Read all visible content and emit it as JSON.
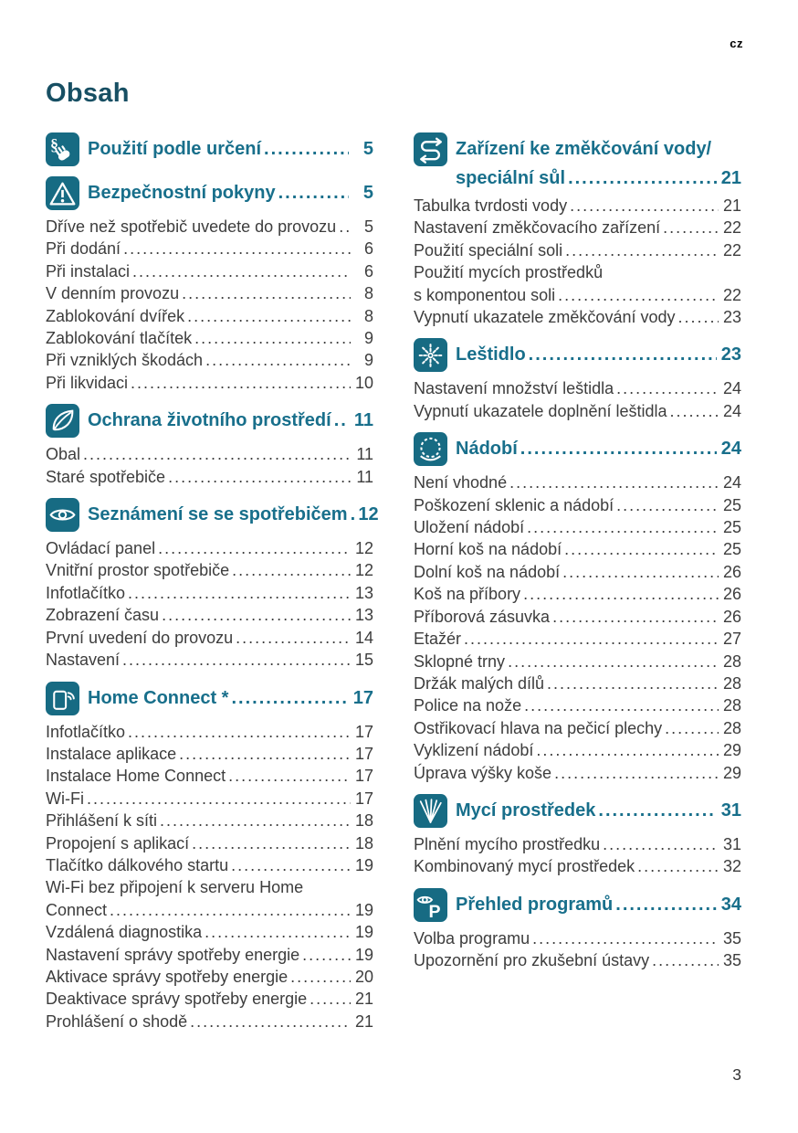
{
  "header": {
    "language_code": "cz"
  },
  "title": "Obsah",
  "footer": {
    "page_number": "3"
  },
  "colors": {
    "icon_background": "#176b83",
    "heading_teal": "#186f8b",
    "title_navy": "#174f63",
    "body_text": "#3d3d3d"
  },
  "columns": [
    {
      "sections": [
        {
          "icon": "section-sign-hand-icon",
          "title_lines": [
            "Použití podle určení"
          ],
          "page": "5",
          "items": []
        },
        {
          "icon": "warning-triangle-icon",
          "title_lines": [
            "Bezpečnostní pokyny"
          ],
          "page": "5",
          "items": [
            {
              "label": "Dříve než spotřebič uvedete do provozu",
              "page": "5"
            },
            {
              "label": "Při dodání",
              "page": "6"
            },
            {
              "label": "Při instalaci",
              "page": "6"
            },
            {
              "label": "V denním provozu",
              "page": "8"
            },
            {
              "label": "Zablokování dvířek",
              "page": "8"
            },
            {
              "label": "Zablokování tlačítek",
              "page": "9"
            },
            {
              "label": "Při vzniklých škodách",
              "page": "9"
            },
            {
              "label": "Při likvidaci",
              "page": "10"
            }
          ]
        },
        {
          "icon": "leaf-icon",
          "title_lines": [
            "Ochrana životního prostředí"
          ],
          "page": "11",
          "items": [
            {
              "label": "Obal",
              "page": "11"
            },
            {
              "label": "Staré spotřebiče",
              "page": "11"
            }
          ]
        },
        {
          "icon": "eye-icon",
          "title_lines": [
            "Seznámení se se spotřebičem"
          ],
          "page": "12",
          "items": [
            {
              "label": "Ovládací panel",
              "page": "12"
            },
            {
              "label": "Vnitřní prostor spotřebiče",
              "page": "12"
            },
            {
              "label": "Infotlačítko",
              "page": "13"
            },
            {
              "label": "Zobrazení času",
              "page": "13"
            },
            {
              "label": "První uvedení do provozu",
              "page": "14"
            },
            {
              "label": "Nastavení",
              "page": "15"
            }
          ]
        },
        {
          "icon": "phone-wifi-icon",
          "title_lines": [
            "Home Connect *"
          ],
          "page": "17",
          "items": [
            {
              "label": "Infotlačítko",
              "page": "17"
            },
            {
              "label": "Instalace aplikace",
              "page": "17"
            },
            {
              "label": "Instalace Home Connect",
              "page": "17"
            },
            {
              "label": "Wi-Fi",
              "page": "17"
            },
            {
              "label": "Přihlášení k síti",
              "page": "18"
            },
            {
              "label": "Propojení s aplikací",
              "page": "18"
            },
            {
              "label": "Tlačítko dálkového startu",
              "page": "19"
            },
            {
              "label": "Wi-Fi bez připojení k serveru Home",
              "label2": "Connect",
              "page": "19"
            },
            {
              "label": "Vzdálená diagnostika",
              "page": "19"
            },
            {
              "label": "Nastavení správy spotřeby energie",
              "page": "19"
            },
            {
              "label": "Aktivace správy spotřeby energie",
              "page": "20"
            },
            {
              "label": "Deaktivace správy spotřeby energie",
              "page": "21"
            },
            {
              "label": "Prohlášení o shodě",
              "page": "21"
            }
          ]
        }
      ]
    },
    {
      "sections": [
        {
          "icon": "s-arrows-icon",
          "title_lines": [
            "Zařízení ke změkčování vody/",
            "speciální sůl"
          ],
          "page": "21",
          "items": [
            {
              "label": "Tabulka tvrdosti vody",
              "page": "21"
            },
            {
              "label": "Nastavení změkčovacího zařízení",
              "page": "22"
            },
            {
              "label": "Použití speciální soli",
              "page": "22"
            },
            {
              "label": "Použití mycích prostředků",
              "label2": "s komponentou soli",
              "page": "22"
            },
            {
              "label": "Vypnutí ukazatele změkčování vody",
              "page": "23"
            }
          ]
        },
        {
          "icon": "sparkle-icon",
          "title_lines": [
            "Leštidlo"
          ],
          "page": "23",
          "items": [
            {
              "label": "Nastavení množství leštidla",
              "page": "24"
            },
            {
              "label": "Vypnutí ukazatele doplnění leštidla",
              "page": "24"
            }
          ]
        },
        {
          "icon": "plate-icon",
          "title_lines": [
            "Nádobí"
          ],
          "page": "24",
          "items": [
            {
              "label": "Není vhodné",
              "page": "24"
            },
            {
              "label": "Poškození sklenic a nádobí",
              "page": "25"
            },
            {
              "label": "Uložení nádobí",
              "page": "25"
            },
            {
              "label": "Horní koš na nádobí",
              "page": "25"
            },
            {
              "label": "Dolní koš na nádobí",
              "page": "26"
            },
            {
              "label": "Koš na příbory",
              "page": "26"
            },
            {
              "label": "Příborová zásuvka",
              "page": "26"
            },
            {
              "label": "Etažér",
              "page": "27"
            },
            {
              "label": "Sklopné trny",
              "page": "28"
            },
            {
              "label": "Držák malých dílů",
              "page": "28"
            },
            {
              "label": "Police na nože",
              "page": "28"
            },
            {
              "label": "Ostřikovací hlava na pečicí plechy",
              "page": "28"
            },
            {
              "label": "Vyklizení nádobí",
              "page": "29"
            },
            {
              "label": "Úprava výšky koše",
              "page": "29"
            }
          ]
        },
        {
          "icon": "spray-icon",
          "title_lines": [
            "Mycí prostředek"
          ],
          "page": "31",
          "items": [
            {
              "label": "Plnění mycího prostředku",
              "page": "31"
            },
            {
              "label": "Kombinovaný mycí prostředek",
              "page": "32"
            }
          ]
        },
        {
          "icon": "eye-p-icon",
          "title_lines": [
            "Přehled programů"
          ],
          "page": "34",
          "items": [
            {
              "label": "Volba programu",
              "page": "35"
            },
            {
              "label": "Upozornění pro zkušební ústavy",
              "page": "35"
            }
          ]
        }
      ]
    }
  ]
}
